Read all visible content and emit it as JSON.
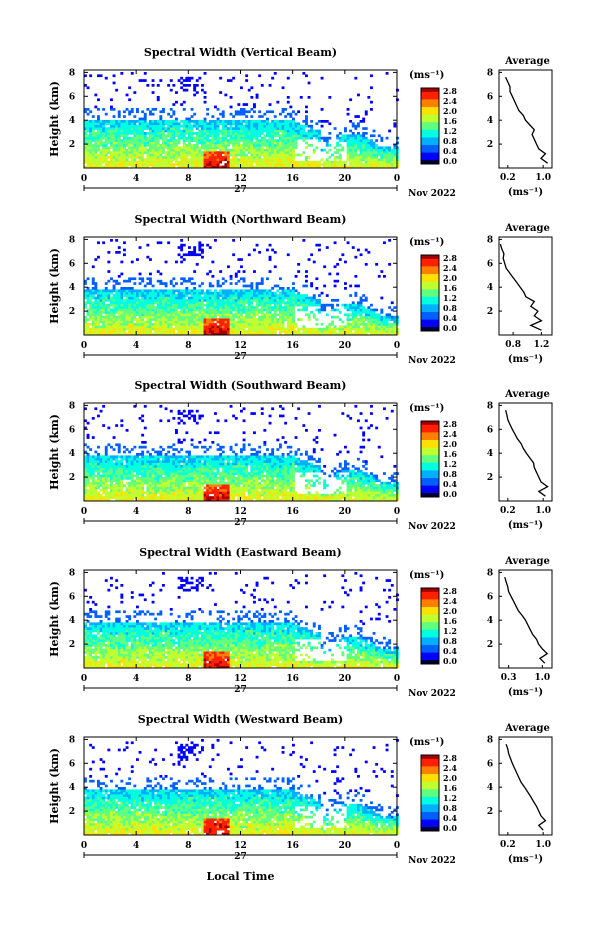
{
  "chart_data": [
    {
      "type": "heatmap",
      "title": "Spectral Width (Vertical Beam)",
      "ylabel": "Height (km)",
      "unit": "(ms⁻¹)",
      "colorbar_ticks": [
        "2.8",
        "2.4",
        "2.0",
        "1.6",
        "1.2",
        "0.8",
        "0.4",
        "0.0"
      ],
      "profile": {
        "title": "Average",
        "xlabel": "(ms⁻¹)",
        "xticks": [
          "0.2",
          "1.0"
        ],
        "xlim": [
          0,
          1.2
        ],
        "heights": [
          0.4,
          0.8,
          1.2,
          1.6,
          2.0,
          2.4,
          2.8,
          3.2,
          3.6,
          4.0,
          4.4,
          4.8,
          5.2,
          5.6,
          6.0,
          6.4,
          6.8,
          7.2,
          7.6
        ],
        "values": [
          1.1,
          0.95,
          1.05,
          0.9,
          0.85,
          0.8,
          0.75,
          0.8,
          0.7,
          0.6,
          0.55,
          0.45,
          0.4,
          0.35,
          0.3,
          0.25,
          0.25,
          0.2,
          0.15
        ]
      }
    },
    {
      "type": "heatmap",
      "title": "Spectral Width (Northward Beam)",
      "ylabel": "Height (km)",
      "unit": "(ms⁻¹)",
      "colorbar_ticks": [
        "2.8",
        "2.4",
        "2.0",
        "1.6",
        "1.2",
        "0.8",
        "0.4",
        "0.0"
      ],
      "profile": {
        "title": "Average",
        "xlabel": "(ms⁻¹)",
        "xticks": [
          "0.8",
          "1.2"
        ],
        "xlim": [
          0.6,
          1.35
        ],
        "heights": [
          0.4,
          0.8,
          1.2,
          1.6,
          2.0,
          2.4,
          2.8,
          3.2,
          3.6,
          4.0,
          4.4,
          4.8,
          5.2,
          5.6,
          6.0,
          6.4,
          6.8,
          7.2,
          7.6
        ],
        "values": [
          1.2,
          1.05,
          1.2,
          1.1,
          1.15,
          1.05,
          1.1,
          0.98,
          0.95,
          0.9,
          0.85,
          0.8,
          0.75,
          0.7,
          0.68,
          0.66,
          0.67,
          0.64,
          0.62
        ]
      }
    },
    {
      "type": "heatmap",
      "title": "Spectral Width (Southward Beam)",
      "ylabel": "Height (km)",
      "unit": "(ms⁻¹)",
      "colorbar_ticks": [
        "2.8",
        "2.4",
        "2.0",
        "1.6",
        "1.2",
        "0.8",
        "0.4",
        "0.0"
      ],
      "profile": {
        "title": "Average",
        "xlabel": "(ms⁻¹)",
        "xticks": [
          "0.2",
          "1.0"
        ],
        "xlim": [
          0,
          1.2
        ],
        "heights": [
          0.4,
          0.8,
          1.2,
          1.6,
          2.0,
          2.4,
          2.8,
          3.2,
          3.6,
          4.0,
          4.4,
          4.8,
          5.2,
          5.6,
          6.0,
          6.4,
          6.8,
          7.2,
          7.6
        ],
        "values": [
          1.05,
          0.9,
          1.1,
          0.95,
          0.9,
          0.85,
          0.8,
          0.78,
          0.7,
          0.62,
          0.55,
          0.5,
          0.42,
          0.36,
          0.3,
          0.25,
          0.2,
          0.18,
          0.15
        ]
      }
    },
    {
      "type": "heatmap",
      "title": "Spectral Width (Eastward Beam)",
      "ylabel": "Height (km)",
      "unit": "(ms⁻¹)",
      "colorbar_ticks": [
        "2.8",
        "2.4",
        "2.0",
        "1.6",
        "1.2",
        "0.8",
        "0.4",
        "0.0"
      ],
      "profile": {
        "title": "Average",
        "xlabel": "(ms⁻¹)",
        "xticks": [
          "0.3",
          "1.0"
        ],
        "xlim": [
          0.1,
          1.2
        ],
        "heights": [
          0.4,
          0.8,
          1.2,
          1.6,
          2.0,
          2.4,
          2.8,
          3.2,
          3.6,
          4.0,
          4.4,
          4.8,
          5.2,
          5.6,
          6.0,
          6.4,
          6.8,
          7.2,
          7.6
        ],
        "values": [
          1.05,
          0.95,
          1.1,
          1.0,
          0.92,
          0.88,
          0.8,
          0.75,
          0.7,
          0.65,
          0.58,
          0.5,
          0.45,
          0.4,
          0.35,
          0.3,
          0.28,
          0.25,
          0.22
        ]
      }
    },
    {
      "type": "heatmap",
      "title": "Spectral Width (Westward Beam)",
      "ylabel": "Height (km)",
      "unit": "(ms⁻¹)",
      "colorbar_ticks": [
        "2.8",
        "2.4",
        "2.0",
        "1.6",
        "1.2",
        "0.8",
        "0.4",
        "0.0"
      ],
      "profile": {
        "title": "Average",
        "xlabel": "(ms⁻¹)",
        "xticks": [
          "0.2",
          "1.0"
        ],
        "xlim": [
          0,
          1.2
        ],
        "heights": [
          0.4,
          0.8,
          1.2,
          1.6,
          2.0,
          2.4,
          2.8,
          3.2,
          3.6,
          4.0,
          4.4,
          4.8,
          5.2,
          5.6,
          6.0,
          6.4,
          6.8,
          7.2,
          7.6
        ],
        "values": [
          1.0,
          0.9,
          1.05,
          0.95,
          0.9,
          0.85,
          0.78,
          0.72,
          0.65,
          0.58,
          0.5,
          0.45,
          0.4,
          0.35,
          0.3,
          0.26,
          0.22,
          0.2,
          0.16
        ]
      }
    }
  ],
  "shared": {
    "x_ticks": [
      "0",
      "4",
      "8",
      "12",
      "16",
      "20",
      "0"
    ],
    "y_ticks": [
      "2",
      "4",
      "6",
      "8"
    ],
    "x_range_hours": [
      0,
      24
    ],
    "y_range_km": [
      0,
      8.2
    ],
    "date_day": "27",
    "date_month_year": "Nov 2022",
    "xlabel": "Local Time",
    "colormap": [
      "#000080",
      "#0000ff",
      "#0060ff",
      "#00b0ff",
      "#00ffe0",
      "#60ff80",
      "#c0ff30",
      "#ffe000",
      "#ff8000",
      "#ff2000",
      "#a00000"
    ],
    "profile_yticks": [
      "2",
      "4",
      "6",
      "8"
    ],
    "profile_ylim": [
      0,
      8.2
    ]
  }
}
